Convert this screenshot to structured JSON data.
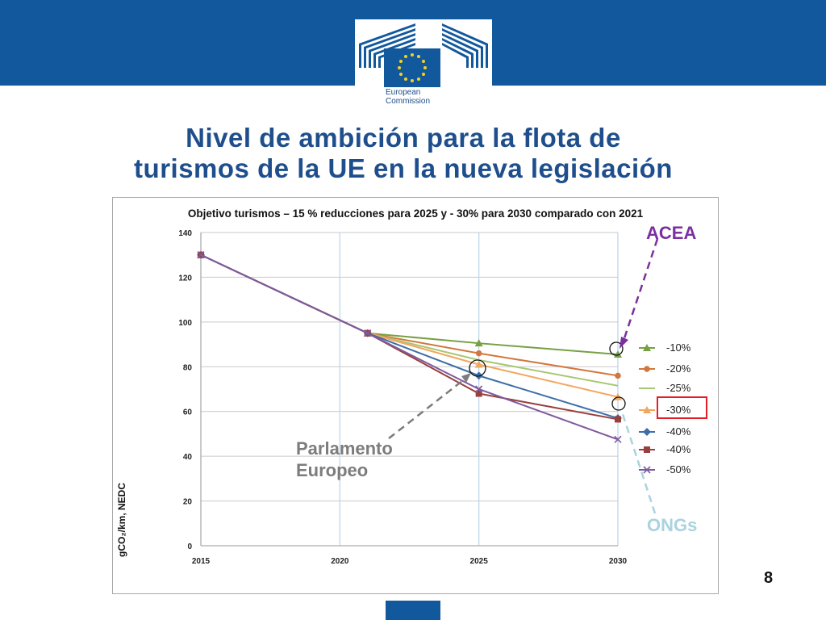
{
  "header": {
    "org_line1": "European",
    "org_line2": "Commission",
    "brand_color": "#12589d"
  },
  "slide": {
    "title_line1": "Nivel de ambición para la flota de",
    "title_line2": "turismos de la UE en la nueva legislación",
    "page_number": "8"
  },
  "annotations": {
    "acea": "ACEA",
    "ongs": "ONGs",
    "parlamento_line1": "Parlamento",
    "parlamento_line2": "Europeo"
  },
  "chart_data": {
    "type": "line",
    "title": "Objetivo turismos – 15 % reducciones para 2025 y - 30% para 2030 comparado con 2021",
    "xlabel": "",
    "ylabel": "gCO₂/km, NEDC",
    "xlim": [
      2015,
      2030
    ],
    "ylim": [
      0,
      140
    ],
    "x_ticks": [
      "2015",
      "2020",
      "2025",
      "2030"
    ],
    "y_ticks": [
      "0",
      "20",
      "40",
      "60",
      "80",
      "100",
      "120",
      "140"
    ],
    "grid": true,
    "legend_position": "right",
    "series": [
      {
        "name": "-10%",
        "color": "#77a044",
        "marker": "triangle",
        "x": [
          2015,
          2021,
          2025,
          2030
        ],
        "y": [
          130,
          95,
          90.5,
          85.5
        ]
      },
      {
        "name": "-20%",
        "color": "#d2773d",
        "marker": "circle",
        "x": [
          2015,
          2021,
          2025,
          2030
        ],
        "y": [
          130,
          95,
          86,
          76
        ]
      },
      {
        "name": "-25%",
        "color": "#a9c773",
        "marker": "none",
        "x": [
          2015,
          2021,
          2025,
          2030
        ],
        "y": [
          130,
          95,
          83,
          71.5
        ]
      },
      {
        "name": "-30%",
        "color": "#f2a65e",
        "marker": "triangle",
        "x": [
          2015,
          2021,
          2025,
          2030
        ],
        "y": [
          130,
          95,
          81,
          66.5
        ]
      },
      {
        "name": "-40%",
        "color": "#3c6ea8",
        "marker": "diamond",
        "x": [
          2015,
          2021,
          2025,
          2030
        ],
        "y": [
          130,
          95,
          76,
          57
        ]
      },
      {
        "name": "-40%",
        "color": "#99403f",
        "marker": "square",
        "x": [
          2015,
          2021,
          2025,
          2030
        ],
        "y": [
          130,
          95,
          68,
          56.5
        ]
      },
      {
        "name": "-50%",
        "color": "#7d5a9e",
        "marker": "x",
        "x": [
          2015,
          2021,
          2025,
          2030
        ],
        "y": [
          130,
          95,
          70,
          47.5
        ]
      }
    ]
  }
}
